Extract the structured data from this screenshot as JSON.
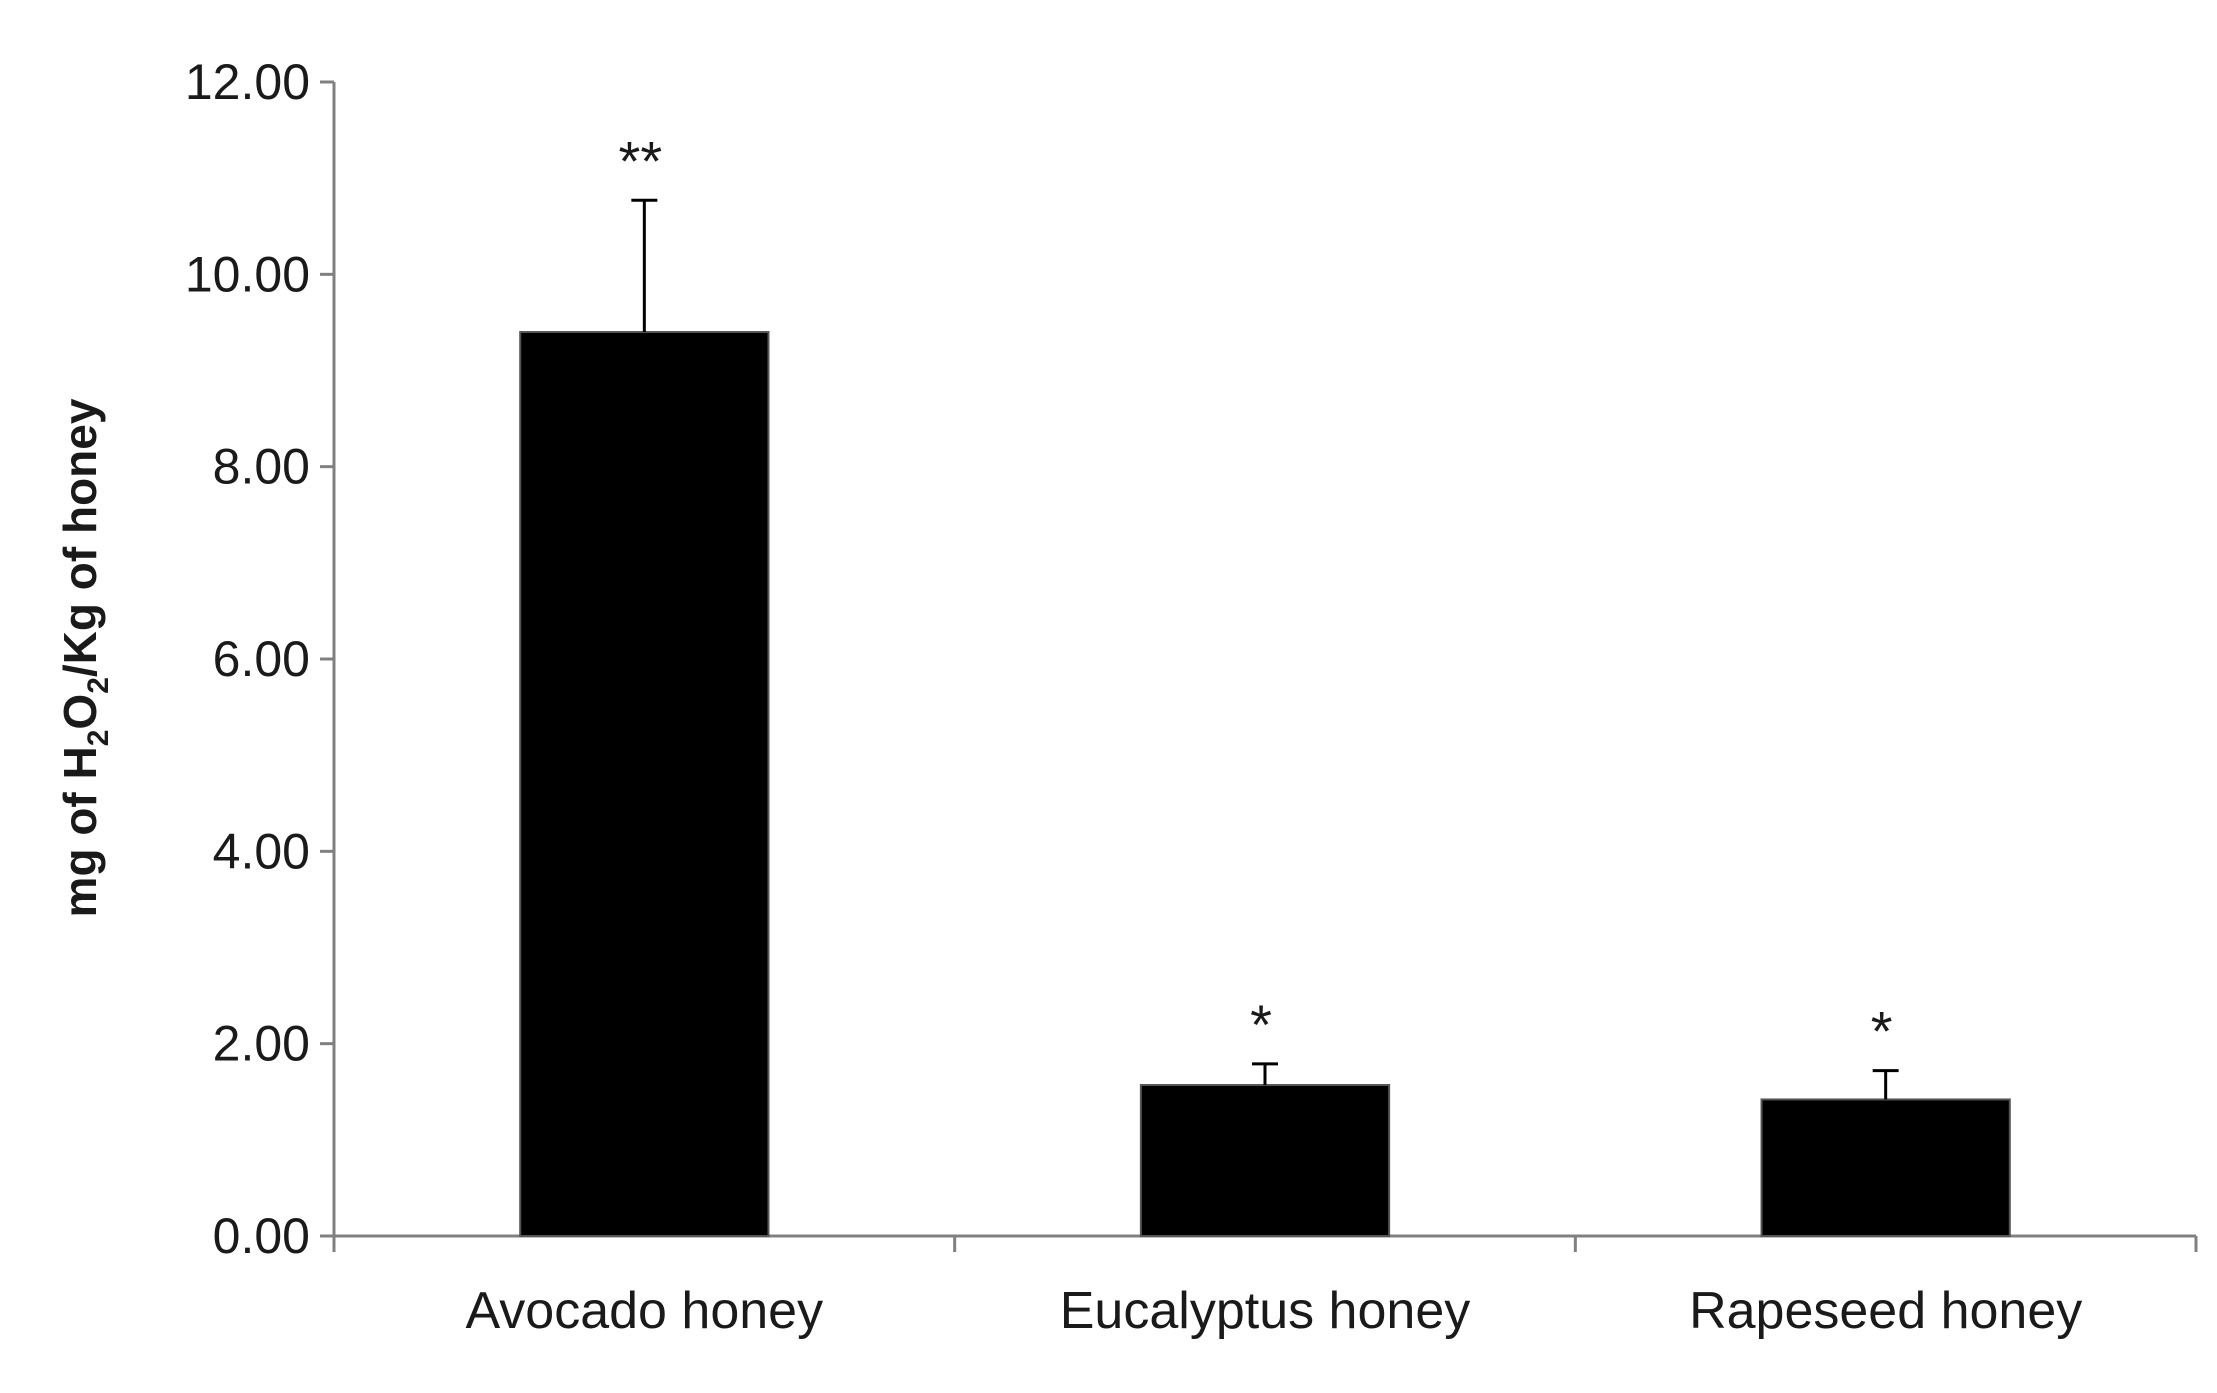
{
  "chart_data": {
    "type": "bar",
    "categories": [
      "Avocado honey",
      "Eucalyptus honey",
      "Rapeseed honey"
    ],
    "values": [
      9.4,
      1.57,
      1.42
    ],
    "error_bars": [
      1.37,
      0.22,
      0.3
    ],
    "significance": [
      "**",
      "*",
      "*"
    ],
    "title": "",
    "xlabel": "",
    "ylabel": {
      "prefix": "mg of H",
      "sub1": "2",
      "mid": "O",
      "sub2": "2",
      "suffix": "/Kg of honey"
    },
    "ylim": [
      0,
      12
    ],
    "yticks": [
      "0.00",
      "2.00",
      "4.00",
      "6.00",
      "8.00",
      "10.00",
      "12.00"
    ],
    "ytick_values": [
      0,
      2,
      4,
      6,
      8,
      10,
      12
    ],
    "grid": false,
    "legend": "none",
    "colors": {
      "bar": "#000000",
      "axis": "#808080",
      "error_bar": "#000000"
    }
  }
}
